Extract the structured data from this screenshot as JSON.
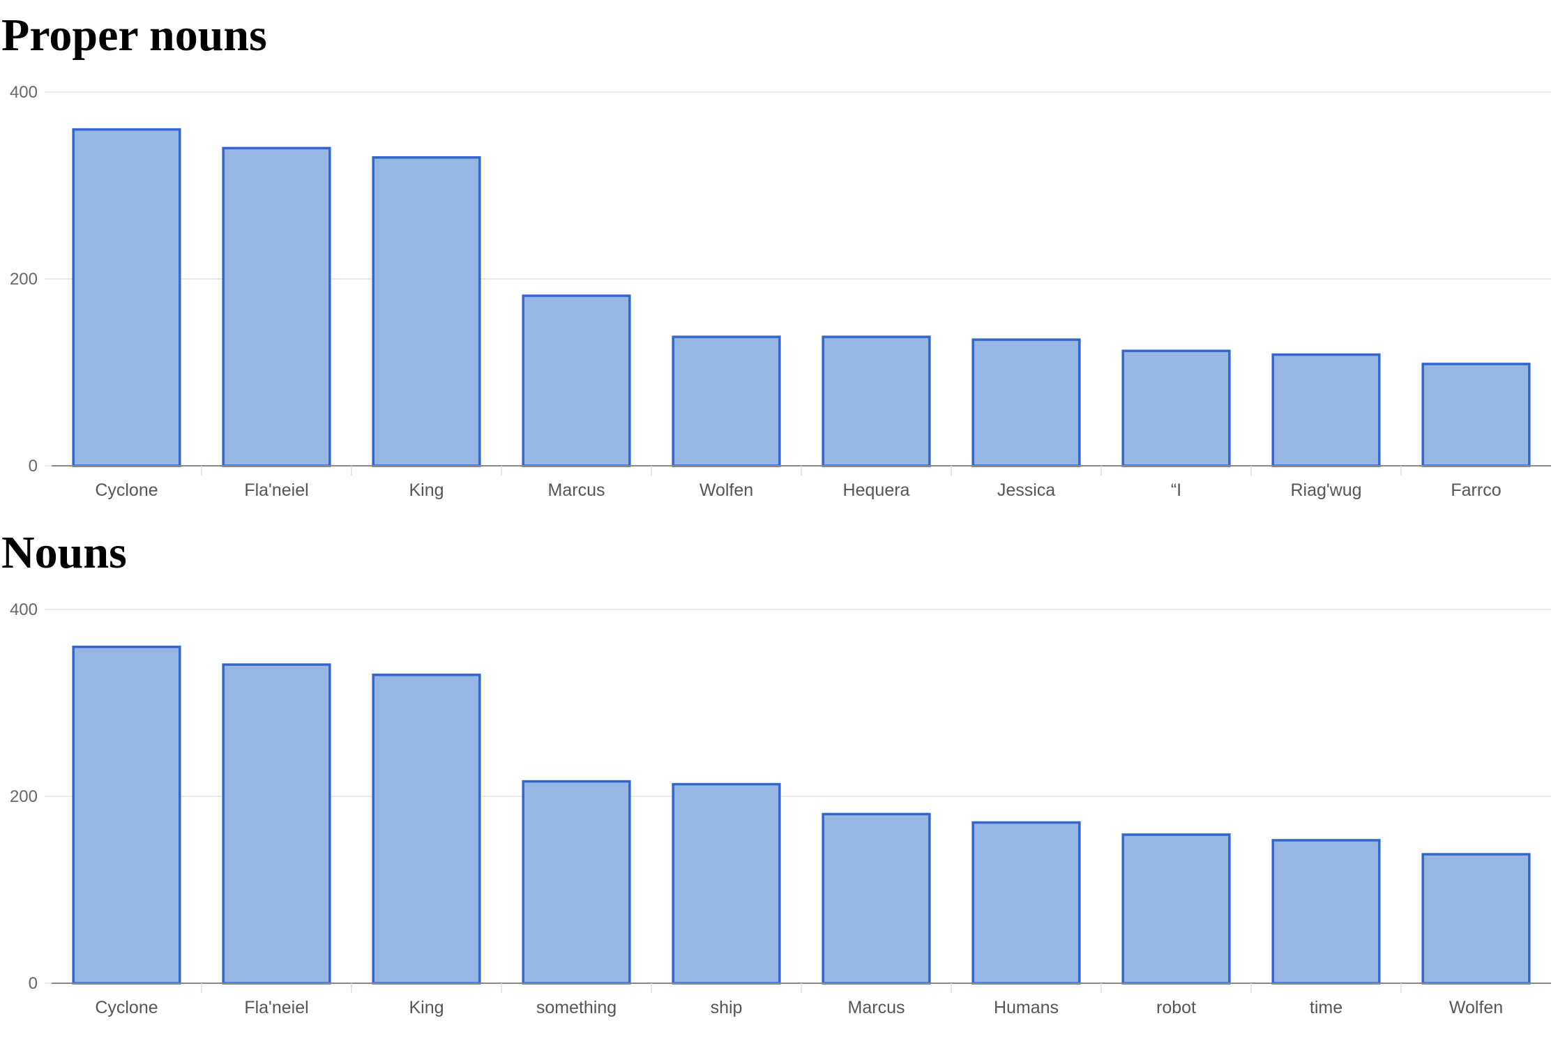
{
  "chart_data": [
    {
      "type": "bar",
      "title": "Proper nouns",
      "categories": [
        "Cyclone",
        "Fla'neiel",
        "King",
        "Marcus",
        "Wolfen",
        "Hequera",
        "Jessica",
        "“I",
        "Riag'wug",
        "Farrco"
      ],
      "values": [
        360,
        340,
        330,
        182,
        138,
        138,
        135,
        123,
        119,
        109
      ],
      "ylim": [
        0,
        400
      ],
      "yticks": [
        0,
        200,
        400
      ],
      "xlabel": "",
      "ylabel": "",
      "grid": true,
      "colors": {
        "bar_fill": "#97b6e3",
        "bar_stroke": "#3366cc",
        "grid": "#e3e3e3",
        "axis": "#888888"
      }
    },
    {
      "type": "bar",
      "title": "Nouns",
      "categories": [
        "Cyclone",
        "Fla'neiel",
        "King",
        "something",
        "ship",
        "Marcus",
        "Humans",
        "robot",
        "time",
        "Wolfen"
      ],
      "values": [
        360,
        341,
        330,
        216,
        213,
        181,
        172,
        159,
        153,
        138
      ],
      "ylim": [
        0,
        400
      ],
      "yticks": [
        0,
        200,
        400
      ],
      "xlabel": "",
      "ylabel": "",
      "grid": true,
      "colors": {
        "bar_fill": "#97b6e3",
        "bar_stroke": "#3366cc",
        "grid": "#e3e3e3",
        "axis": "#888888"
      }
    }
  ]
}
